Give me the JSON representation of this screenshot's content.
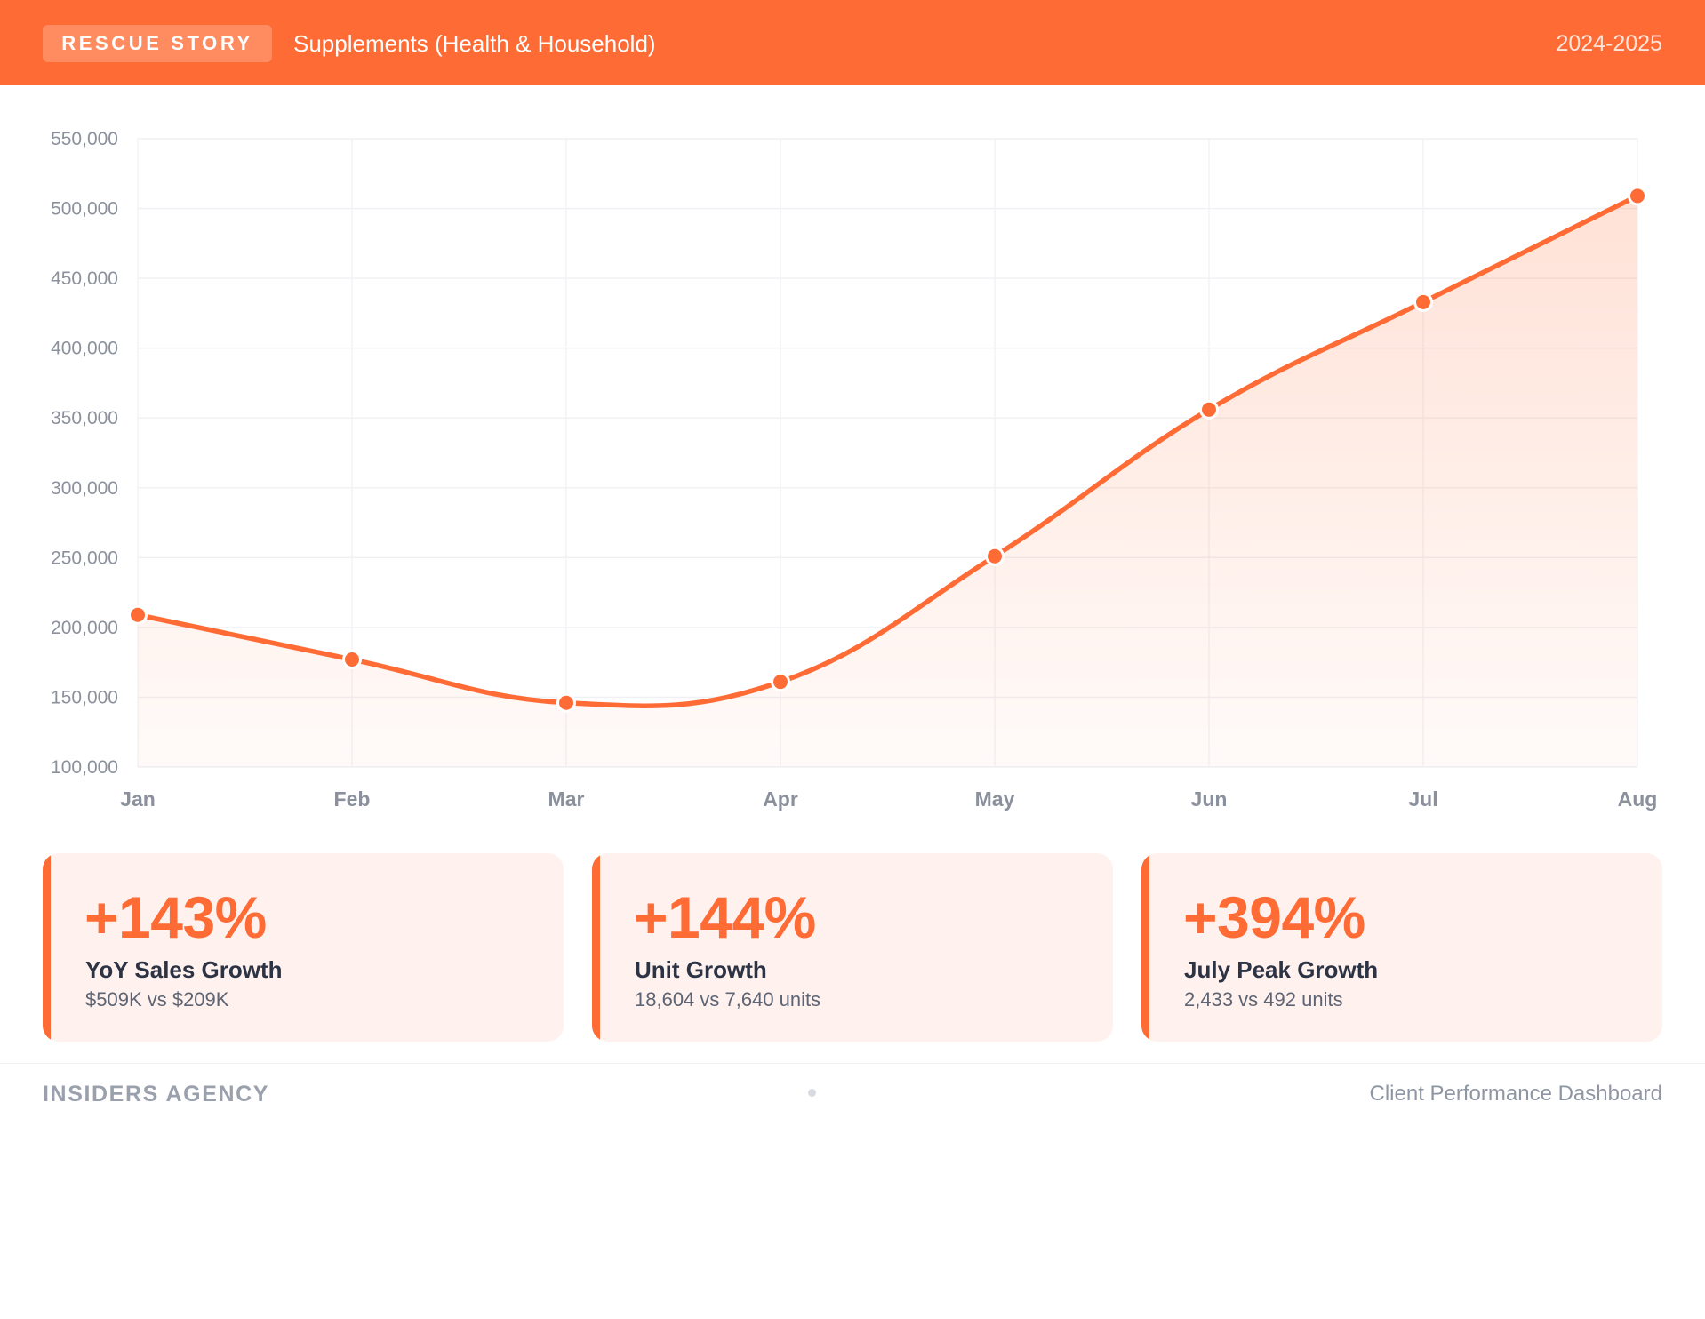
{
  "header": {
    "badge": "RESCUE STORY",
    "title": "Supplements (Health & Household)",
    "period": "2024-2025"
  },
  "colors": {
    "accent": "#ff6b35",
    "card_background": "#fff1ee",
    "grid": "#eef0f3",
    "axis_text": "#8b919c"
  },
  "chart_data": {
    "type": "area",
    "categories": [
      "Jan",
      "Feb",
      "Mar",
      "Apr",
      "May",
      "Jun",
      "Jul",
      "Aug"
    ],
    "series": [
      {
        "values": [
          209000,
          177000,
          146000,
          161000,
          251000,
          356000,
          433000,
          509000
        ]
      }
    ],
    "ylim": [
      100000,
      550000
    ],
    "yticks": [
      100000,
      150000,
      200000,
      250000,
      300000,
      350000,
      400000,
      450000,
      500000,
      550000
    ],
    "ytick_labels": [
      "100,000",
      "150,000",
      "200,000",
      "250,000",
      "300,000",
      "350,000",
      "400,000",
      "450,000",
      "500,000",
      "550,000"
    ],
    "grid": true,
    "markers": true,
    "smooth": true,
    "title": "",
    "xlabel": "",
    "ylabel": ""
  },
  "cards": [
    {
      "value": "+143%",
      "label": "YoY Sales Growth",
      "detail": "$509K vs $209K"
    },
    {
      "value": "+144%",
      "label": "Unit Growth",
      "detail": "18,604 vs 7,640 units"
    },
    {
      "value": "+394%",
      "label": "July Peak Growth",
      "detail": "2,433 vs 492 units"
    }
  ],
  "footer": {
    "brand": "INSIDERS AGENCY",
    "right": "Client Performance Dashboard"
  }
}
